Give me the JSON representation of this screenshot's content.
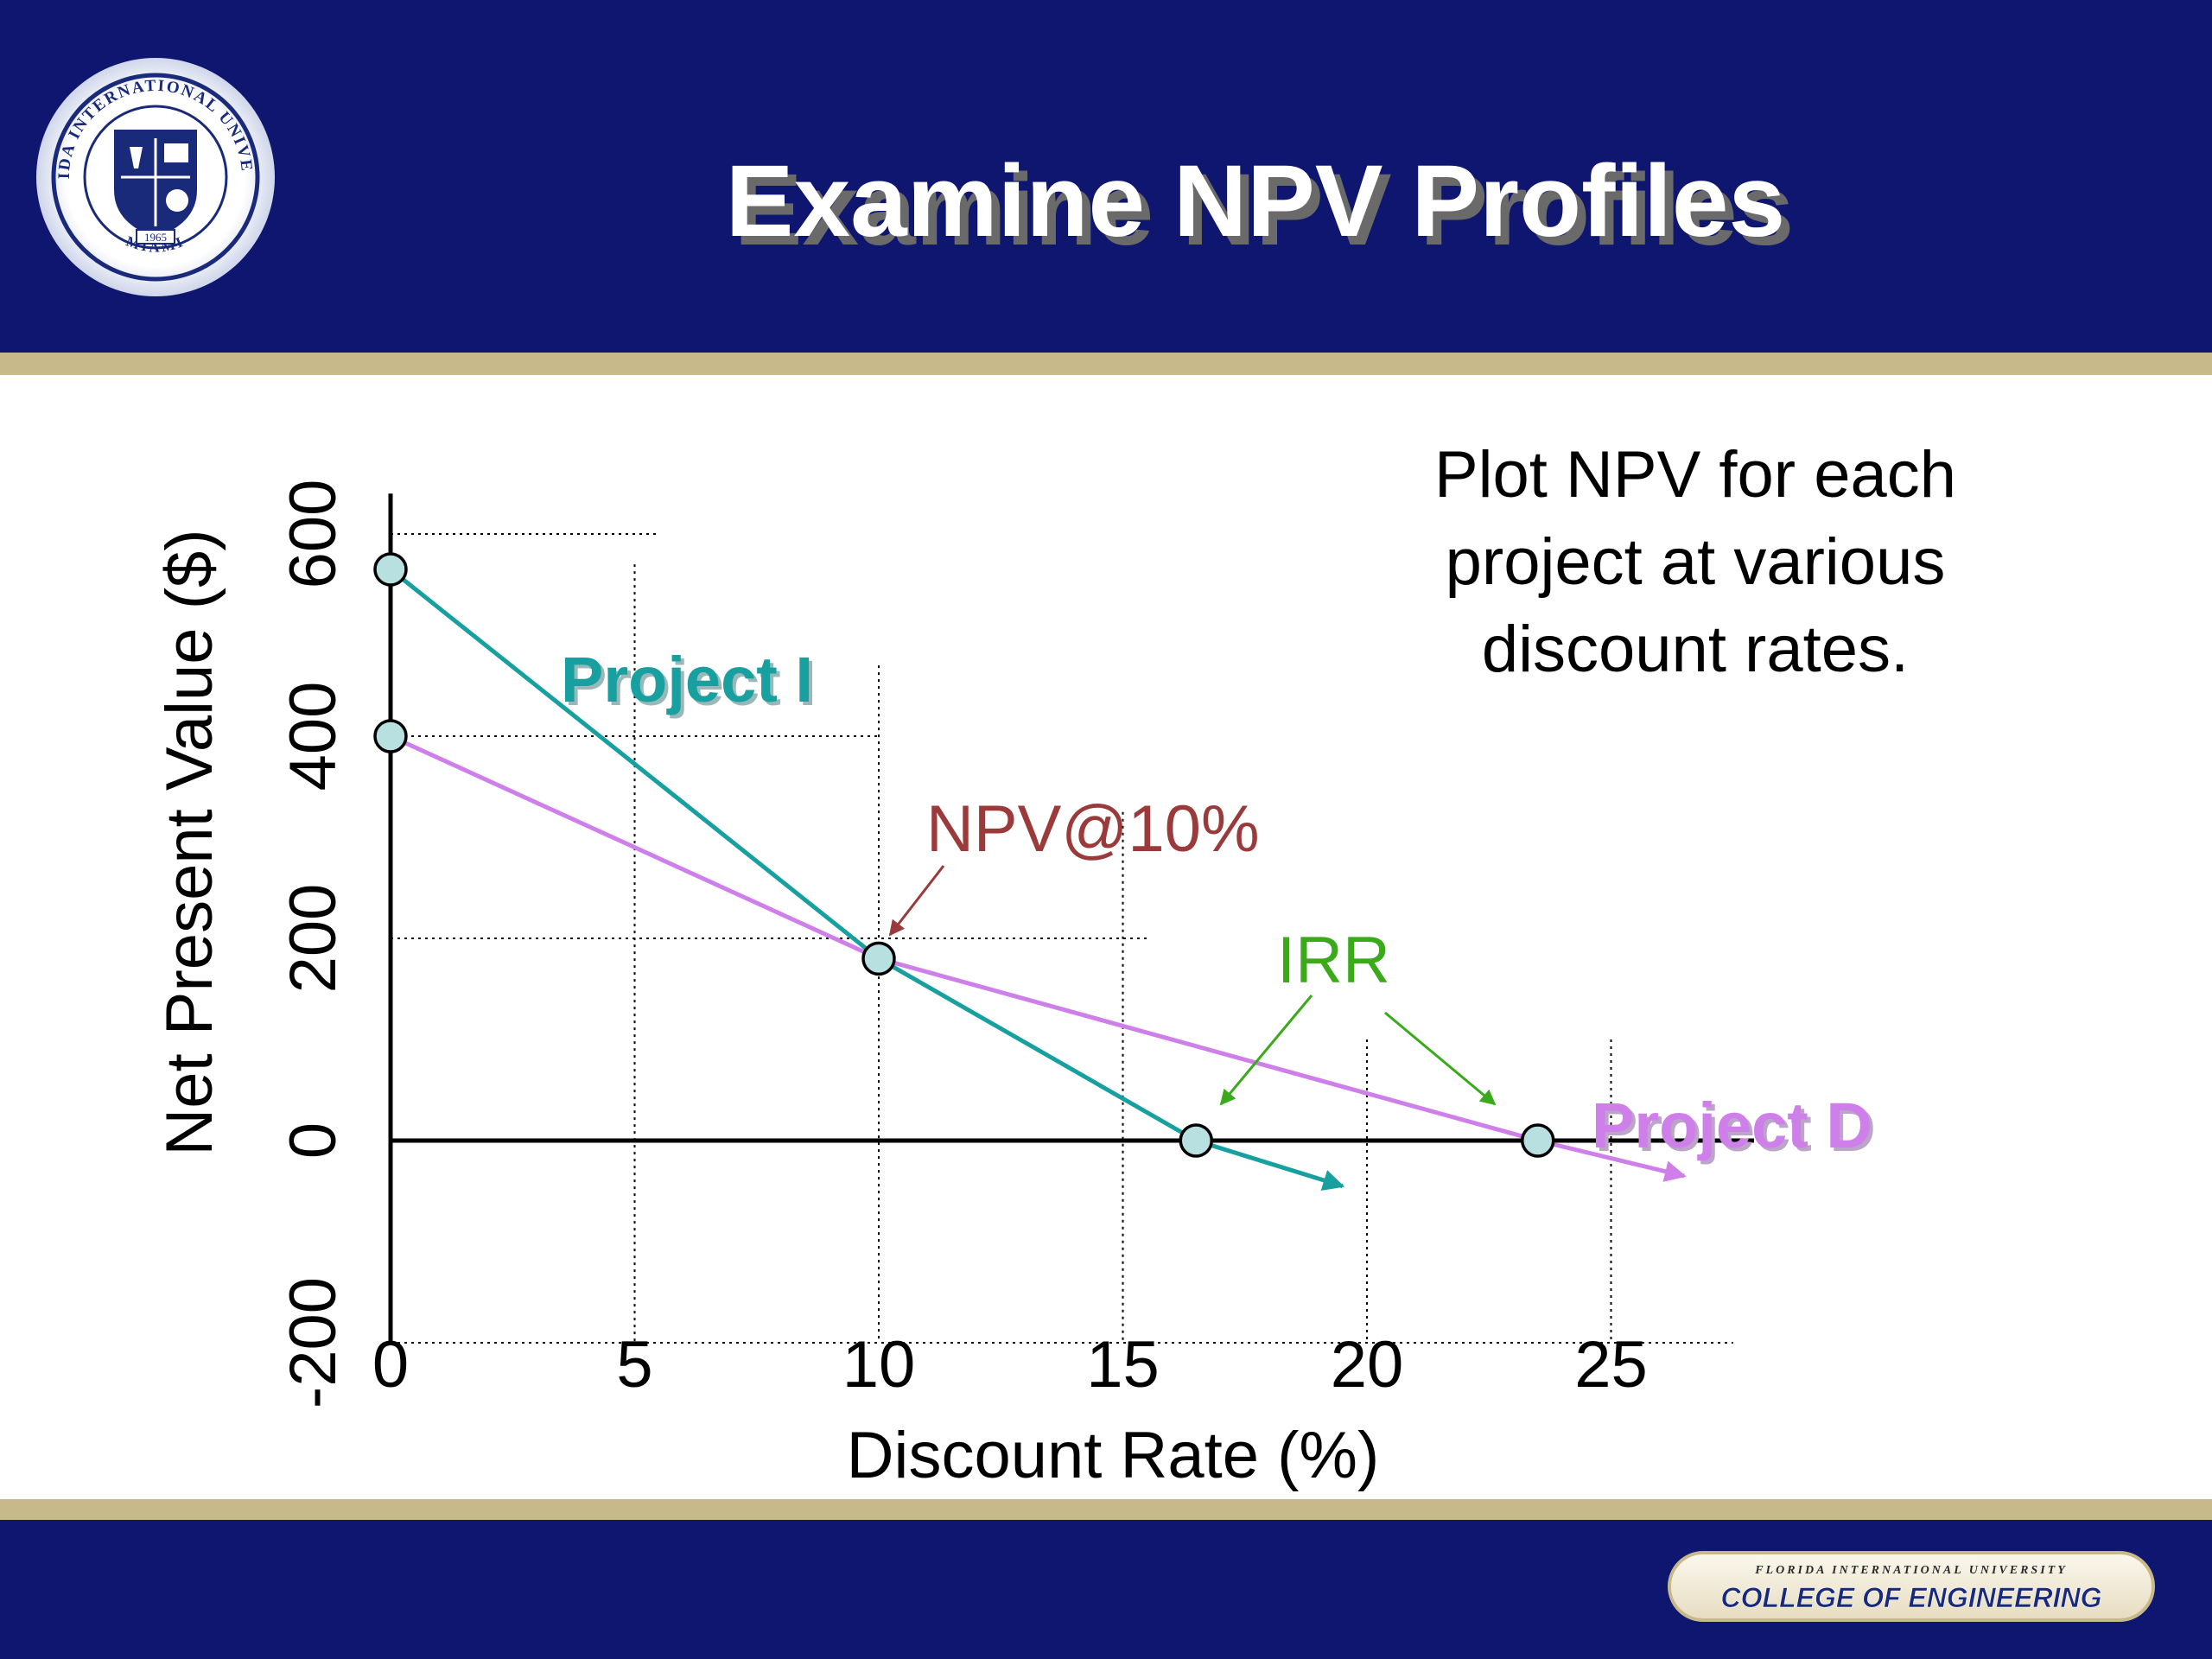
{
  "slide": {
    "title": "Examine NPV Profiles",
    "note_lines": [
      "Plot NPV for each",
      "project at various",
      "discount rates."
    ],
    "seal": {
      "ring_text": "FLORIDA INTERNATIONAL UNIVERSITY",
      "bottom_text": "MIAMI",
      "year": "1965"
    },
    "footer_badge": {
      "top_text": "FLORIDA INTERNATIONAL UNIVERSITY",
      "main_text": "COLLEGE OF ENGINEERING"
    },
    "colors": {
      "banner": "#0e1670",
      "gold": "#c8b98a",
      "project_i": "#18a0a0",
      "project_d": "#cf7fe9",
      "npv_annotation": "#9a3a3a",
      "irr_annotation": "#3aaa1a",
      "marker_fill": "#b8e0e0"
    }
  },
  "chart_data": {
    "type": "line",
    "xlabel": "Discount Rate (%)",
    "ylabel": "Net Present Value ($)",
    "xlim": [
      0,
      28
    ],
    "ylim": [
      -200,
      600
    ],
    "x_ticks": [
      "0",
      "5",
      "10",
      "15",
      "20",
      "25"
    ],
    "y_ticks": [
      "-200",
      "0",
      "200",
      "400",
      "600"
    ],
    "series": [
      {
        "name": "Project I",
        "points": [
          [
            0,
            565
          ],
          [
            10,
            180
          ],
          [
            16.5,
            0
          ],
          [
            19.5,
            -45
          ]
        ],
        "markers": [
          [
            0,
            565
          ],
          [
            10,
            180
          ],
          [
            16.5,
            0
          ]
        ]
      },
      {
        "name": "Project D",
        "points": [
          [
            0,
            400
          ],
          [
            10,
            180
          ],
          [
            23.5,
            0
          ],
          [
            26.5,
            -35
          ]
        ],
        "markers": [
          [
            0,
            400
          ],
          [
            23.5,
            0
          ]
        ]
      }
    ],
    "annotations": [
      {
        "text": "NPV@10%",
        "point": [
          10,
          180
        ]
      },
      {
        "text": "IRR",
        "points": [
          [
            16.5,
            0
          ],
          [
            23.5,
            0
          ]
        ]
      }
    ]
  }
}
